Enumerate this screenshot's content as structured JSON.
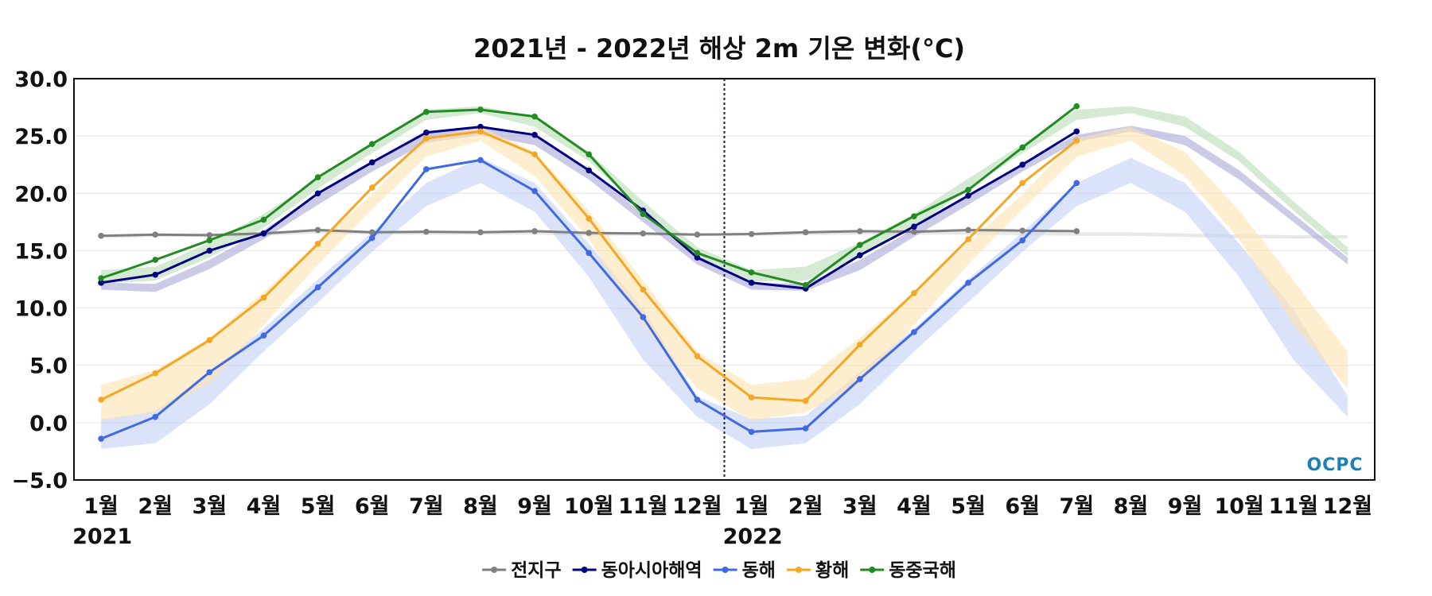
{
  "chart_data": {
    "type": "line",
    "title": "2021년 - 2022년 해상 2m 기온 변화(°C)",
    "xlabel": "",
    "ylabel": "",
    "ylim": [
      -5,
      30
    ],
    "yticks": [
      "30.0",
      "25.0",
      "20.0",
      "15.0",
      "10.0",
      "5.0",
      "0.0",
      "−5.0"
    ],
    "ytick_values": [
      30,
      25,
      20,
      15,
      10,
      5,
      0,
      -5
    ],
    "categories": [
      "1월",
      "2월",
      "3월",
      "4월",
      "5월",
      "6월",
      "7월",
      "8월",
      "9월",
      "10월",
      "11월",
      "12월",
      "1월",
      "2월",
      "3월",
      "4월",
      "5월",
      "6월",
      "7월",
      "8월",
      "9월",
      "10월",
      "11월",
      "12월"
    ],
    "year_labels": [
      {
        "label": "2021",
        "index": 0
      },
      {
        "label": "2022",
        "index": 12
      }
    ],
    "divider_after_index": 11,
    "grid": true,
    "legend_position": "bottom-center",
    "watermark": "OCPC",
    "series": [
      {
        "name": "전지구",
        "color": "#808080",
        "band_color": "#d9d9d9",
        "values": [
          16.3,
          16.4,
          16.35,
          16.5,
          16.8,
          16.6,
          16.65,
          16.6,
          16.7,
          16.55,
          16.5,
          16.4,
          16.45,
          16.6,
          16.7,
          16.65,
          16.8,
          16.75,
          16.7,
          null,
          null,
          null,
          null,
          null
        ],
        "band_low": [
          16.1,
          16.2,
          16.2,
          16.3,
          16.5,
          16.4,
          16.4,
          16.4,
          16.4,
          16.3,
          16.3,
          16.3,
          16.3,
          16.35,
          16.4,
          16.4,
          16.4,
          16.35,
          16.3,
          16.3,
          16.2,
          16.1,
          16.05,
          16.05
        ],
        "band_high": [
          16.4,
          16.5,
          16.5,
          16.6,
          16.7,
          16.7,
          16.7,
          16.7,
          16.7,
          16.65,
          16.6,
          16.5,
          16.5,
          16.6,
          16.7,
          16.7,
          16.7,
          16.65,
          16.6,
          16.6,
          16.5,
          16.4,
          16.35,
          16.35
        ]
      },
      {
        "name": "동아시아해역",
        "color": "#000080",
        "band_color": "#a9a9d8",
        "values": [
          12.2,
          12.9,
          15.0,
          16.5,
          20.0,
          22.7,
          25.3,
          25.8,
          25.1,
          22.0,
          18.5,
          14.4,
          12.2,
          11.7,
          14.6,
          17.1,
          19.8,
          22.5,
          25.4,
          null,
          null,
          null,
          null,
          null
        ],
        "band_low": [
          11.6,
          11.4,
          13.4,
          16.0,
          19.0,
          21.9,
          24.4,
          25.1,
          24.2,
          21.2,
          17.5,
          13.8,
          11.6,
          11.5,
          13.3,
          16.2,
          19.0,
          21.9,
          24.5,
          25.4,
          24.2,
          21.2,
          17.5,
          13.8
        ],
        "band_high": [
          12.2,
          12.1,
          14.2,
          16.8,
          19.9,
          22.6,
          25.2,
          25.9,
          25.1,
          22.0,
          18.2,
          14.4,
          12.2,
          12.1,
          14.2,
          16.9,
          19.9,
          22.6,
          25.1,
          25.9,
          25.0,
          22.0,
          18.2,
          14.4
        ]
      },
      {
        "name": "동해",
        "color": "#4169e1",
        "band_color": "#c2d0f7",
        "values": [
          -1.4,
          0.5,
          4.4,
          7.6,
          11.8,
          16.1,
          22.1,
          22.9,
          20.2,
          14.8,
          9.2,
          2.0,
          -0.8,
          -0.5,
          3.8,
          7.9,
          12.2,
          15.9,
          20.9,
          null,
          null,
          null,
          null,
          null
        ],
        "band_low": [
          -2.3,
          -1.8,
          1.6,
          6.2,
          10.5,
          14.9,
          18.9,
          20.9,
          18.4,
          12.7,
          5.5,
          0.5,
          -2.3,
          -1.8,
          1.6,
          6.2,
          10.5,
          14.9,
          18.9,
          20.9,
          18.4,
          12.7,
          5.5,
          0.5
        ],
        "band_high": [
          0.3,
          1.0,
          4.4,
          8.2,
          12.5,
          16.6,
          20.9,
          23.1,
          20.9,
          15.6,
          9.9,
          2.3,
          0.3,
          0.6,
          4.4,
          8.2,
          12.5,
          16.6,
          20.9,
          23.1,
          20.9,
          15.6,
          9.9,
          2.3
        ]
      },
      {
        "name": "황해",
        "color": "#f5a623",
        "band_color": "#fde2b0",
        "values": [
          2.0,
          4.3,
          7.2,
          10.9,
          15.6,
          20.5,
          24.8,
          25.4,
          23.4,
          17.8,
          11.6,
          5.8,
          2.2,
          1.9,
          6.8,
          11.3,
          16.0,
          20.9,
          24.6,
          null,
          null,
          null,
          null,
          null
        ],
        "band_low": [
          0.2,
          0.9,
          3.4,
          8.5,
          13.8,
          18.6,
          23.2,
          24.6,
          21.5,
          16.0,
          8.5,
          3.0,
          0.2,
          0.9,
          3.4,
          8.5,
          13.8,
          18.6,
          23.2,
          24.6,
          21.5,
          16.0,
          8.5,
          3.0
        ],
        "band_high": [
          3.3,
          4.6,
          7.4,
          11.4,
          15.7,
          19.9,
          24.8,
          25.8,
          23.6,
          18.5,
          12.4,
          6.2,
          3.3,
          3.8,
          7.4,
          11.4,
          15.7,
          19.9,
          24.8,
          25.8,
          23.6,
          18.5,
          12.4,
          6.2
        ]
      },
      {
        "name": "동중국해",
        "color": "#228b22",
        "band_color": "#b8dcb6",
        "values": [
          12.6,
          14.2,
          15.9,
          17.7,
          21.4,
          24.3,
          27.1,
          27.3,
          26.7,
          23.4,
          18.2,
          14.8,
          13.1,
          12.0,
          15.5,
          18.0,
          20.3,
          24.0,
          27.6,
          null,
          null,
          null,
          null,
          null
        ],
        "band_low": [
          12.1,
          12.4,
          14.4,
          17.0,
          20.4,
          23.5,
          26.4,
          27.0,
          25.8,
          22.8,
          18.5,
          14.5,
          12.3,
          12.4,
          14.4,
          17.0,
          20.4,
          23.5,
          26.4,
          27.0,
          25.8,
          22.8,
          18.5,
          14.5
        ],
        "band_high": [
          13.3,
          13.6,
          15.7,
          18.2,
          21.3,
          24.3,
          27.3,
          27.6,
          26.7,
          23.6,
          19.3,
          15.3,
          13.3,
          13.6,
          15.7,
          18.2,
          21.3,
          24.3,
          27.3,
          27.6,
          26.7,
          23.6,
          19.3,
          15.3
        ]
      }
    ]
  }
}
